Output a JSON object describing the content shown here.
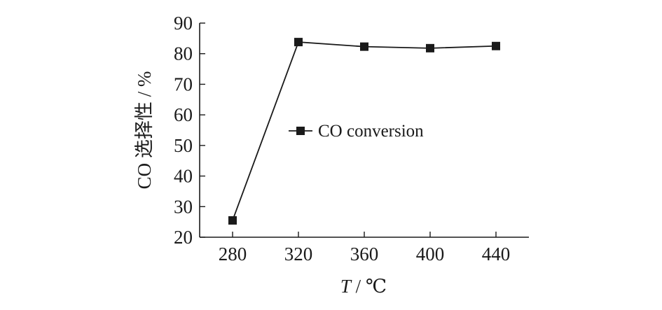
{
  "chart_data": {
    "type": "line",
    "title": "",
    "xlabel": "T / ℃",
    "ylabel": "CO 选择性 / %",
    "x": [
      280,
      320,
      360,
      400,
      440
    ],
    "xticks": [
      "280",
      "320",
      "360",
      "400",
      "440"
    ],
    "yticks": [
      "20",
      "30",
      "40",
      "50",
      "60",
      "70",
      "80",
      "90"
    ],
    "ylim": [
      20,
      90
    ],
    "xlim": [
      260,
      460
    ],
    "grid": false,
    "legend": "center",
    "series": [
      {
        "name": "CO conversion",
        "marker": "square",
        "color": "#1a1a1a",
        "values": [
          25.5,
          83.8,
          82.3,
          81.8,
          82.5
        ]
      }
    ]
  }
}
